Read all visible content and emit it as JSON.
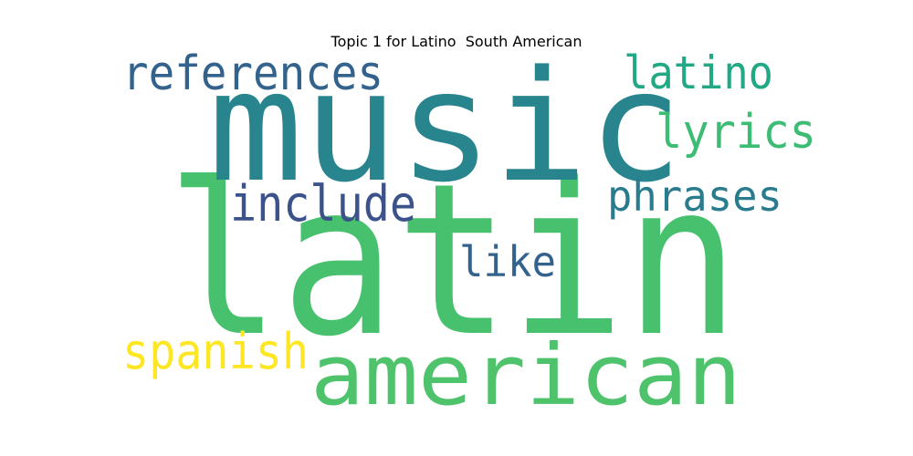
{
  "chart_data": {
    "type": "wordcloud",
    "title": "Topic 1 for Latino  South American",
    "words": [
      {
        "text": "latin",
        "color": "#48c16e"
      },
      {
        "text": "music",
        "color": "#28858e"
      },
      {
        "text": "american",
        "color": "#4ec36b"
      },
      {
        "text": "references",
        "color": "#33638d"
      },
      {
        "text": "latino",
        "color": "#22a884"
      },
      {
        "text": "lyrics",
        "color": "#3dbc74"
      },
      {
        "text": "include",
        "color": "#3b528b"
      },
      {
        "text": "phrases",
        "color": "#297b8e"
      },
      {
        "text": "like",
        "color": "#33628d"
      },
      {
        "text": "spanish",
        "color": "#fde725"
      }
    ]
  }
}
